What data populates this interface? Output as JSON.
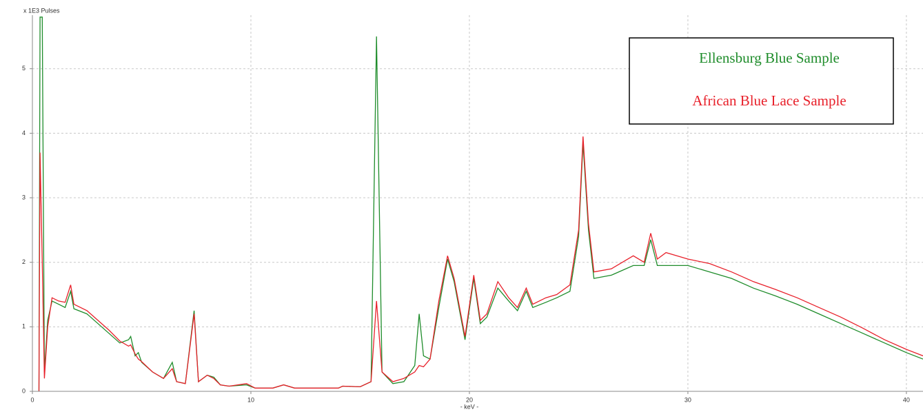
{
  "chart_data": {
    "type": "line",
    "ylabel": "x 1E3 Pulses",
    "xlabel": "- keV -",
    "x": [
      0.3,
      0.35,
      0.45,
      0.55,
      0.7,
      0.9,
      1.2,
      1.5,
      1.75,
      1.9,
      2.5,
      3.0,
      3.5,
      4.0,
      4.4,
      4.5,
      4.7,
      4.85,
      5.0,
      5.5,
      6.0,
      6.4,
      6.6,
      7.0,
      7.4,
      7.6,
      8.0,
      8.3,
      8.6,
      9.0,
      9.8,
      10.2,
      11.0,
      11.5,
      12.0,
      14.0,
      14.2,
      15.0,
      15.5,
      15.75,
      16.0,
      16.5,
      17.0,
      17.5,
      17.7,
      17.9,
      18.2,
      18.6,
      19.0,
      19.3,
      19.8,
      20.2,
      20.5,
      20.8,
      21.3,
      21.8,
      22.2,
      22.6,
      22.9,
      23.5,
      24.0,
      24.6,
      25.0,
      25.2,
      25.45,
      25.7,
      26.5,
      27.5,
      28.0,
      28.3,
      28.6,
      29.0,
      30.0,
      31.0,
      32.0,
      33.0,
      34.0,
      35.0,
      36.0,
      37.0,
      38.0,
      39.0,
      40.0,
      40.76
    ],
    "series": [
      {
        "name": "Ellensburg Blue Sample",
        "color": "#1e8c2a",
        "values": [
          0,
          5.8,
          5.8,
          0.3,
          1.1,
          1.4,
          1.35,
          1.3,
          1.55,
          1.28,
          1.2,
          1.05,
          0.9,
          0.75,
          0.8,
          0.85,
          0.55,
          0.6,
          0.45,
          0.3,
          0.2,
          0.45,
          0.15,
          0.12,
          1.25,
          0.15,
          0.25,
          0.22,
          0.1,
          0.08,
          0.1,
          0.05,
          0.05,
          0.1,
          0.05,
          0.05,
          0.08,
          0.07,
          0.15,
          5.5,
          0.3,
          0.12,
          0.15,
          0.4,
          1.2,
          0.55,
          0.5,
          1.3,
          2.05,
          1.7,
          0.8,
          1.75,
          1.05,
          1.15,
          1.6,
          1.4,
          1.25,
          1.55,
          1.3,
          1.38,
          1.45,
          1.55,
          2.4,
          3.85,
          2.5,
          1.75,
          1.8,
          1.95,
          1.95,
          2.35,
          1.95,
          1.95,
          1.95,
          1.85,
          1.75,
          1.6,
          1.48,
          1.35,
          1.2,
          1.05,
          0.9,
          0.75,
          0.6,
          0.5
        ]
      },
      {
        "name": "African Blue Lace Sample",
        "color": "#e8202a",
        "values": [
          0,
          3.7,
          2.0,
          0.2,
          1.0,
          1.45,
          1.4,
          1.38,
          1.65,
          1.35,
          1.25,
          1.1,
          0.95,
          0.78,
          0.7,
          0.72,
          0.58,
          0.5,
          0.46,
          0.3,
          0.2,
          0.35,
          0.15,
          0.12,
          1.2,
          0.15,
          0.25,
          0.2,
          0.1,
          0.08,
          0.12,
          0.05,
          0.05,
          0.1,
          0.05,
          0.05,
          0.08,
          0.07,
          0.15,
          1.4,
          0.3,
          0.15,
          0.2,
          0.3,
          0.4,
          0.38,
          0.5,
          1.4,
          2.1,
          1.75,
          0.85,
          1.8,
          1.1,
          1.2,
          1.7,
          1.45,
          1.3,
          1.6,
          1.35,
          1.45,
          1.5,
          1.65,
          2.5,
          3.95,
          2.6,
          1.85,
          1.9,
          2.1,
          2.0,
          2.45,
          2.05,
          2.15,
          2.05,
          1.98,
          1.85,
          1.7,
          1.58,
          1.45,
          1.3,
          1.15,
          0.98,
          0.8,
          0.65,
          0.55
        ]
      }
    ],
    "xlim": [
      0,
      40.76
    ],
    "ylim": [
      0,
      5.83
    ],
    "xticks": [
      0,
      10,
      20,
      30,
      40
    ],
    "yticks": [
      0,
      1,
      2,
      3,
      4,
      5
    ],
    "grid": true
  }
}
